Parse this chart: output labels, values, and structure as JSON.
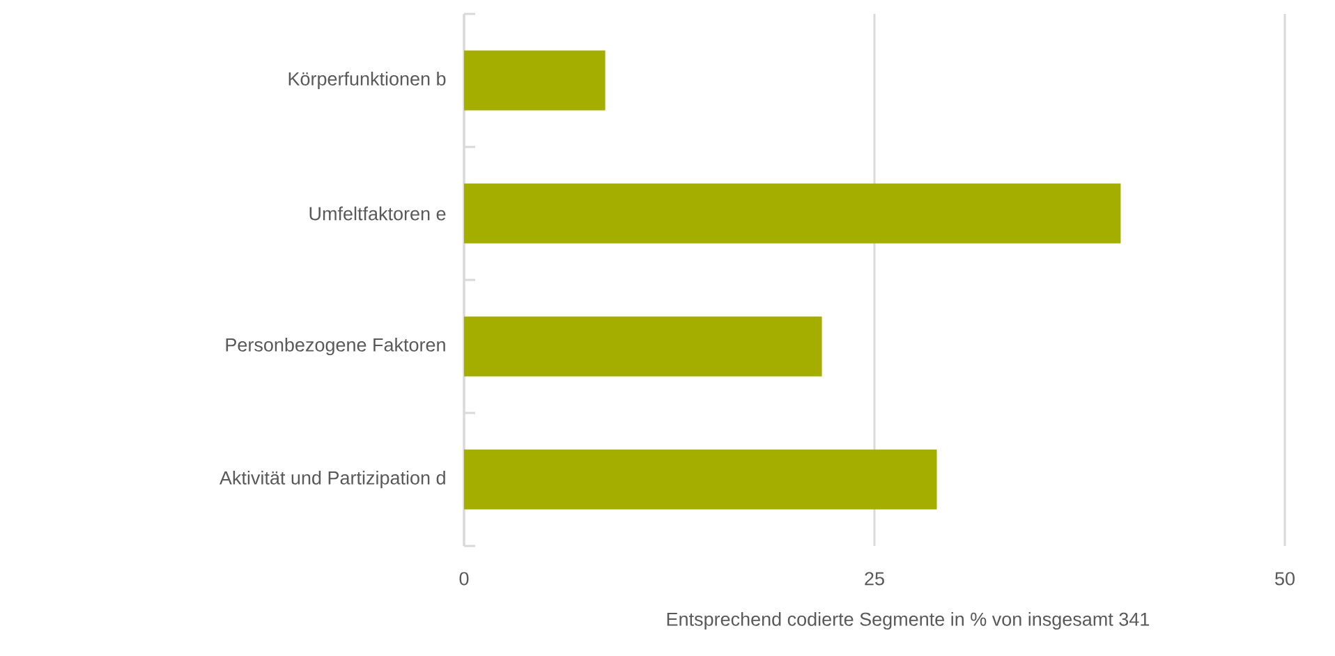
{
  "chart_data": {
    "type": "bar",
    "orientation": "horizontal",
    "categories": [
      "Körperfunktionen b",
      "Umfeltfaktoren e",
      "Personbezogene Faktoren",
      "Aktivität und Partizipation d"
    ],
    "values": [
      8.6,
      40.0,
      21.8,
      28.8
    ],
    "color": "#a3ae00",
    "xlim": [
      0,
      50
    ],
    "xticks": [
      0,
      25,
      50
    ],
    "grid": "x",
    "xlabel": "Entsprechend codierte Segmente in % von insgesamt 341"
  }
}
